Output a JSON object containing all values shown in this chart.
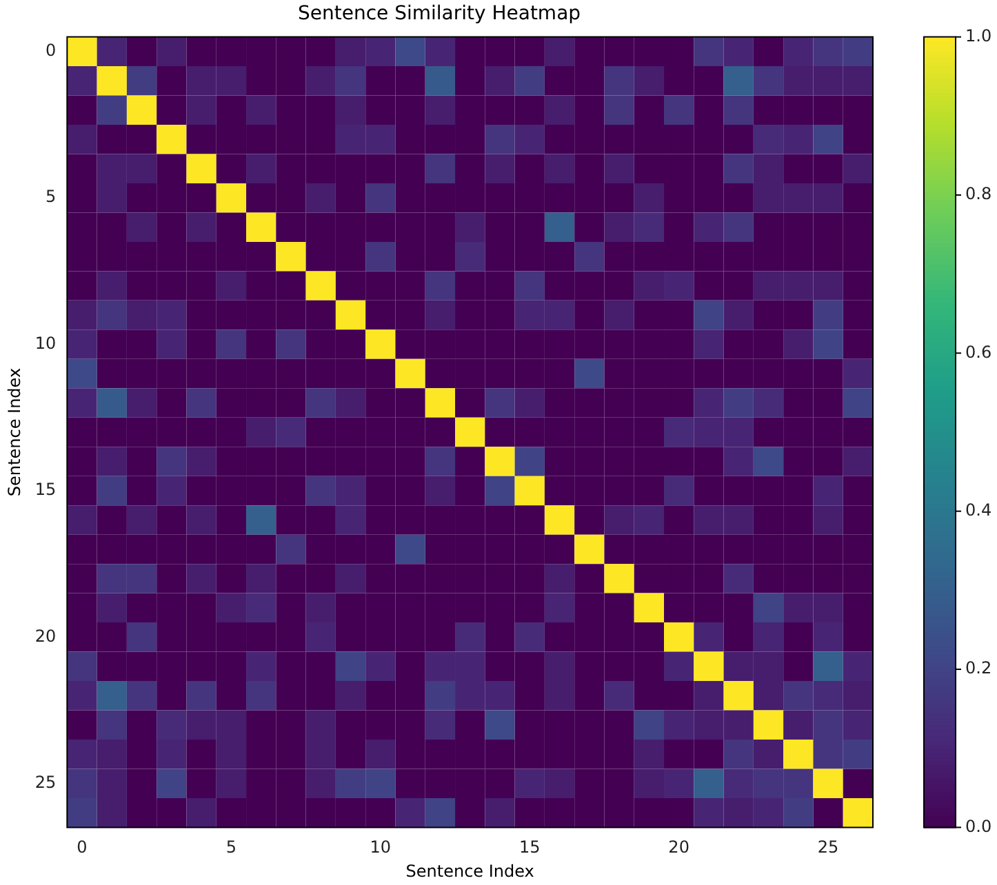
{
  "chart_data": {
    "type": "heatmap",
    "title": "Sentence Similarity Heatmap",
    "xlabel": "Sentence Index",
    "ylabel": "Sentence Index",
    "categories": [
      "0",
      null,
      null,
      null,
      null,
      "5",
      null,
      null,
      null,
      null,
      "10",
      null,
      null,
      null,
      null,
      "15",
      null,
      null,
      null,
      null,
      "20",
      null,
      null,
      null,
      null,
      "25",
      null
    ],
    "y_categories": [
      "0",
      null,
      null,
      null,
      null,
      "5",
      null,
      null,
      null,
      null,
      "10",
      null,
      null,
      null,
      null,
      "15",
      null,
      null,
      null,
      null,
      "20",
      null,
      null,
      null,
      null,
      "25",
      null
    ],
    "clim": [
      0,
      1
    ],
    "cticks": [
      {
        "value": 0,
        "label": "0.0"
      },
      {
        "value": 0.2,
        "label": "0.2"
      },
      {
        "value": 0.4,
        "label": "0.4"
      },
      {
        "value": 0.6,
        "label": "0.6"
      },
      {
        "value": 0.8,
        "label": "0.8"
      },
      {
        "value": 1,
        "label": "1.0"
      }
    ],
    "cells": [
      [
        1,
        0.1,
        0,
        0.08,
        0,
        0,
        0,
        0,
        0,
        0.08,
        0.1,
        0.22,
        0.1,
        0,
        0,
        0,
        0.08,
        0,
        0,
        0,
        0,
        0.15,
        0.1,
        0,
        0.1,
        0.15,
        0.18
      ],
      [
        0.1,
        1,
        0.18,
        0,
        0.08,
        0.08,
        0,
        0,
        0.08,
        0.15,
        0,
        0,
        0.28,
        0,
        0.08,
        0.18,
        0,
        0,
        0.15,
        0.08,
        0,
        0,
        0.3,
        0.15,
        0.08,
        0.08,
        0.08
      ],
      [
        0,
        0.18,
        1,
        0,
        0.08,
        0,
        0.08,
        0,
        0,
        0.08,
        0,
        0,
        0.08,
        0,
        0,
        0,
        0.08,
        0,
        0.15,
        0,
        0.15,
        0,
        0.15,
        0,
        0,
        0,
        0
      ],
      [
        0.08,
        0,
        0,
        1,
        0,
        0,
        0,
        0,
        0,
        0.1,
        0.1,
        0,
        0,
        0,
        0.15,
        0.1,
        0,
        0,
        0,
        0,
        0,
        0,
        0,
        0.12,
        0.1,
        0.2,
        0
      ],
      [
        0,
        0.08,
        0.08,
        0,
        1,
        0,
        0.08,
        0,
        0,
        0,
        0,
        0,
        0.15,
        0,
        0.08,
        0,
        0.08,
        0,
        0.08,
        0,
        0,
        0,
        0.15,
        0.08,
        0,
        0,
        0.08
      ],
      [
        0,
        0.08,
        0,
        0,
        0,
        1,
        0,
        0,
        0.08,
        0,
        0.15,
        0,
        0,
        0,
        0,
        0,
        0,
        0,
        0,
        0.08,
        0,
        0,
        0,
        0.08,
        0.08,
        0.08,
        0
      ],
      [
        0,
        0,
        0.08,
        0,
        0.08,
        0,
        1,
        0,
        0,
        0,
        0,
        0,
        0,
        0.08,
        0,
        0,
        0.3,
        0,
        0.08,
        0.12,
        0,
        0.1,
        0.15,
        0,
        0,
        0,
        0
      ],
      [
        0,
        0,
        0,
        0,
        0,
        0,
        0,
        1,
        0,
        0,
        0.15,
        0,
        0,
        0.12,
        0,
        0,
        0,
        0.15,
        0,
        0,
        0,
        0,
        0,
        0,
        0,
        0,
        0
      ],
      [
        0,
        0.08,
        0,
        0,
        0,
        0.08,
        0,
        0,
        1,
        0,
        0,
        0,
        0.15,
        0,
        0,
        0.15,
        0,
        0,
        0,
        0.08,
        0.1,
        0,
        0,
        0.08,
        0.08,
        0.08,
        0
      ],
      [
        0.08,
        0.15,
        0.08,
        0.1,
        0,
        0,
        0,
        0,
        0,
        1,
        0,
        0,
        0.08,
        0,
        0,
        0.1,
        0.1,
        0,
        0.08,
        0,
        0,
        0.2,
        0.08,
        0,
        0,
        0.18,
        0
      ],
      [
        0.1,
        0,
        0,
        0.1,
        0,
        0.15,
        0,
        0.15,
        0,
        0,
        1,
        0,
        0,
        0,
        0,
        0,
        0,
        0,
        0,
        0,
        0,
        0.1,
        0,
        0,
        0.08,
        0.2,
        0
      ],
      [
        0.22,
        0,
        0,
        0,
        0,
        0,
        0,
        0,
        0,
        0,
        0,
        1,
        0,
        0,
        0,
        0,
        0,
        0.22,
        0,
        0,
        0,
        0,
        0,
        0,
        0,
        0,
        0.1
      ],
      [
        0.1,
        0.28,
        0.08,
        0,
        0.15,
        0,
        0,
        0,
        0.15,
        0.08,
        0,
        0,
        1,
        0,
        0.15,
        0.08,
        0,
        0,
        0,
        0,
        0,
        0.1,
        0.18,
        0.12,
        0,
        0,
        0.2
      ],
      [
        0,
        0,
        0,
        0,
        0,
        0,
        0.08,
        0.12,
        0,
        0,
        0,
        0,
        0,
        1,
        0,
        0,
        0,
        0,
        0,
        0,
        0.12,
        0.1,
        0.1,
        0,
        0,
        0,
        0
      ],
      [
        0,
        0.08,
        0,
        0.15,
        0.08,
        0,
        0,
        0,
        0,
        0,
        0,
        0,
        0.15,
        0,
        1,
        0.2,
        0,
        0,
        0,
        0,
        0,
        0,
        0.1,
        0.22,
        0,
        0,
        0.08
      ],
      [
        0,
        0.18,
        0,
        0.1,
        0,
        0,
        0,
        0,
        0.15,
        0.1,
        0,
        0,
        0.08,
        0,
        0.2,
        1,
        0,
        0,
        0,
        0,
        0.12,
        0,
        0,
        0,
        0,
        0.1,
        0
      ],
      [
        0.08,
        0,
        0.08,
        0,
        0.08,
        0,
        0.3,
        0,
        0,
        0.1,
        0,
        0,
        0,
        0,
        0,
        0,
        1,
        0,
        0.08,
        0.1,
        0,
        0.08,
        0.08,
        0,
        0,
        0.08,
        0
      ],
      [
        0,
        0,
        0,
        0,
        0,
        0,
        0,
        0.15,
        0,
        0,
        0,
        0.22,
        0,
        0,
        0,
        0,
        0,
        1,
        0,
        0,
        0,
        0,
        0,
        0,
        0,
        0,
        0
      ],
      [
        0,
        0.15,
        0.15,
        0,
        0.08,
        0,
        0.08,
        0,
        0,
        0.08,
        0,
        0,
        0,
        0,
        0,
        0,
        0.08,
        0,
        1,
        0,
        0,
        0,
        0.12,
        0,
        0,
        0,
        0
      ],
      [
        0,
        0.08,
        0,
        0,
        0,
        0.08,
        0.12,
        0,
        0.08,
        0,
        0,
        0,
        0,
        0,
        0,
        0,
        0.1,
        0,
        0,
        1,
        0,
        0,
        0,
        0.2,
        0.08,
        0.08,
        0
      ],
      [
        0,
        0,
        0.15,
        0,
        0,
        0,
        0,
        0,
        0.1,
        0,
        0,
        0,
        0,
        0.12,
        0,
        0.12,
        0,
        0,
        0,
        0,
        1,
        0.1,
        0,
        0.1,
        0,
        0.1,
        0
      ],
      [
        0.15,
        0,
        0,
        0,
        0,
        0,
        0.1,
        0,
        0,
        0.2,
        0.1,
        0,
        0.1,
        0.1,
        0,
        0,
        0.08,
        0,
        0,
        0,
        0.1,
        1,
        0.08,
        0.08,
        0,
        0.3,
        0.1
      ],
      [
        0.1,
        0.3,
        0.15,
        0,
        0.15,
        0,
        0.15,
        0,
        0,
        0.08,
        0,
        0,
        0.18,
        0.1,
        0.1,
        0,
        0.08,
        0,
        0.12,
        0,
        0,
        0.08,
        1,
        0.08,
        0.15,
        0.12,
        0.08
      ],
      [
        0,
        0.15,
        0,
        0.12,
        0.08,
        0.08,
        0,
        0,
        0.08,
        0,
        0,
        0,
        0.12,
        0,
        0.22,
        0,
        0,
        0,
        0,
        0.2,
        0.1,
        0.08,
        0.08,
        1,
        0.08,
        0.15,
        0.1
      ],
      [
        0.1,
        0.08,
        0,
        0.1,
        0,
        0.08,
        0,
        0,
        0.08,
        0,
        0.08,
        0,
        0,
        0,
        0,
        0,
        0,
        0,
        0,
        0.08,
        0,
        0,
        0.15,
        0.08,
        1,
        0.15,
        0.18
      ],
      [
        0.15,
        0.08,
        0,
        0.2,
        0,
        0.08,
        0,
        0,
        0.08,
        0.18,
        0.2,
        0,
        0,
        0,
        0,
        0.1,
        0.08,
        0,
        0,
        0.08,
        0.1,
        0.3,
        0.12,
        0.15,
        0.15,
        1,
        0
      ],
      [
        0.18,
        0.08,
        0,
        0,
        0.08,
        0,
        0,
        0,
        0,
        0,
        0,
        0.1,
        0.2,
        0,
        0.08,
        0,
        0,
        0,
        0,
        0,
        0,
        0.1,
        0.08,
        0.1,
        0.18,
        0,
        1
      ]
    ]
  }
}
